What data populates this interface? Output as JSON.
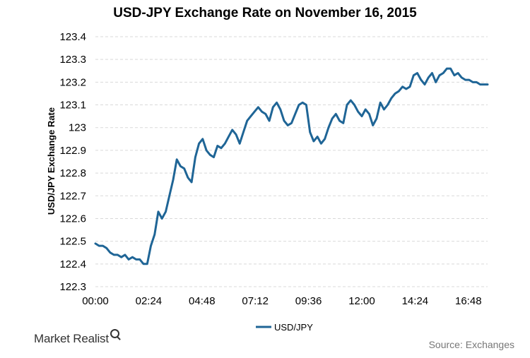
{
  "brand": {
    "name": "Market Realist",
    "icon": "magnifier-icon"
  },
  "source": "Source: Exchanges",
  "colors": {
    "line": "#1f6596",
    "grid": "#d9d9d9"
  },
  "chart_data": {
    "type": "line",
    "title": "USD-JPY Exchange Rate on November 16, 2015",
    "xlabel": "",
    "ylabel": "USD/JPY Exchange Rate",
    "ylim": [
      122.3,
      123.4
    ],
    "yticks": [
      "123.4",
      "123.3",
      "123.2",
      "123.1",
      "123",
      "122.9",
      "122.8",
      "122.7",
      "122.6",
      "122.5",
      "122.4",
      "122.3"
    ],
    "xticks": [
      "00:00",
      "02:24",
      "04:48",
      "07:12",
      "09:36",
      "12:00",
      "14:24",
      "16:48"
    ],
    "grid": true,
    "legend_position": "bottom",
    "series": [
      {
        "name": "USD/JPY",
        "x_unit": "minutes since 00:00",
        "x": [
          0,
          10,
          20,
          30,
          40,
          50,
          60,
          70,
          80,
          90,
          100,
          110,
          120,
          130,
          140,
          150,
          160,
          170,
          180,
          190,
          200,
          210,
          220,
          230,
          240,
          250,
          260,
          270,
          280,
          290,
          300,
          310,
          320,
          330,
          340,
          350,
          360,
          370,
          380,
          390,
          400,
          410,
          420,
          430,
          440,
          450,
          460,
          470,
          480,
          490,
          500,
          510,
          520,
          530,
          540,
          550,
          560,
          570,
          580,
          590,
          600,
          610,
          620,
          630,
          640,
          650,
          660,
          670,
          680,
          690,
          700,
          710,
          720,
          730,
          740,
          750,
          760,
          770,
          780,
          790,
          800,
          810,
          820,
          830,
          840,
          850,
          860,
          870,
          880,
          890,
          900,
          910,
          920,
          930,
          940,
          950,
          960,
          970,
          980,
          990,
          1000,
          1010,
          1020,
          1030,
          1040,
          1050,
          1060
        ],
        "values": [
          122.49,
          122.48,
          122.48,
          122.47,
          122.45,
          122.44,
          122.44,
          122.43,
          122.44,
          122.42,
          122.43,
          122.42,
          122.42,
          122.4,
          122.4,
          122.48,
          122.53,
          122.63,
          122.6,
          122.63,
          122.7,
          122.77,
          122.86,
          122.83,
          122.82,
          122.78,
          122.76,
          122.87,
          122.93,
          122.95,
          122.9,
          122.88,
          122.87,
          122.92,
          122.91,
          122.93,
          122.96,
          122.99,
          122.97,
          122.93,
          122.98,
          123.03,
          123.05,
          123.07,
          123.09,
          123.07,
          123.06,
          123.03,
          123.09,
          123.11,
          123.08,
          123.03,
          123.01,
          123.02,
          123.06,
          123.1,
          123.11,
          123.1,
          122.98,
          122.94,
          122.96,
          122.93,
          122.95,
          123.0,
          123.04,
          123.06,
          123.03,
          123.02,
          123.1,
          123.12,
          123.1,
          123.07,
          123.05,
          123.08,
          123.06,
          123.01,
          123.04,
          123.11,
          123.08,
          123.1,
          123.13,
          123.15,
          123.16,
          123.18,
          123.17,
          123.18,
          123.23,
          123.24,
          123.21,
          123.19,
          123.22,
          123.24,
          123.2,
          123.23,
          123.24,
          123.26,
          123.26,
          123.23,
          123.24,
          123.22,
          123.21,
          123.21,
          123.2,
          123.2,
          123.19,
          123.19,
          123.19
        ]
      }
    ]
  }
}
